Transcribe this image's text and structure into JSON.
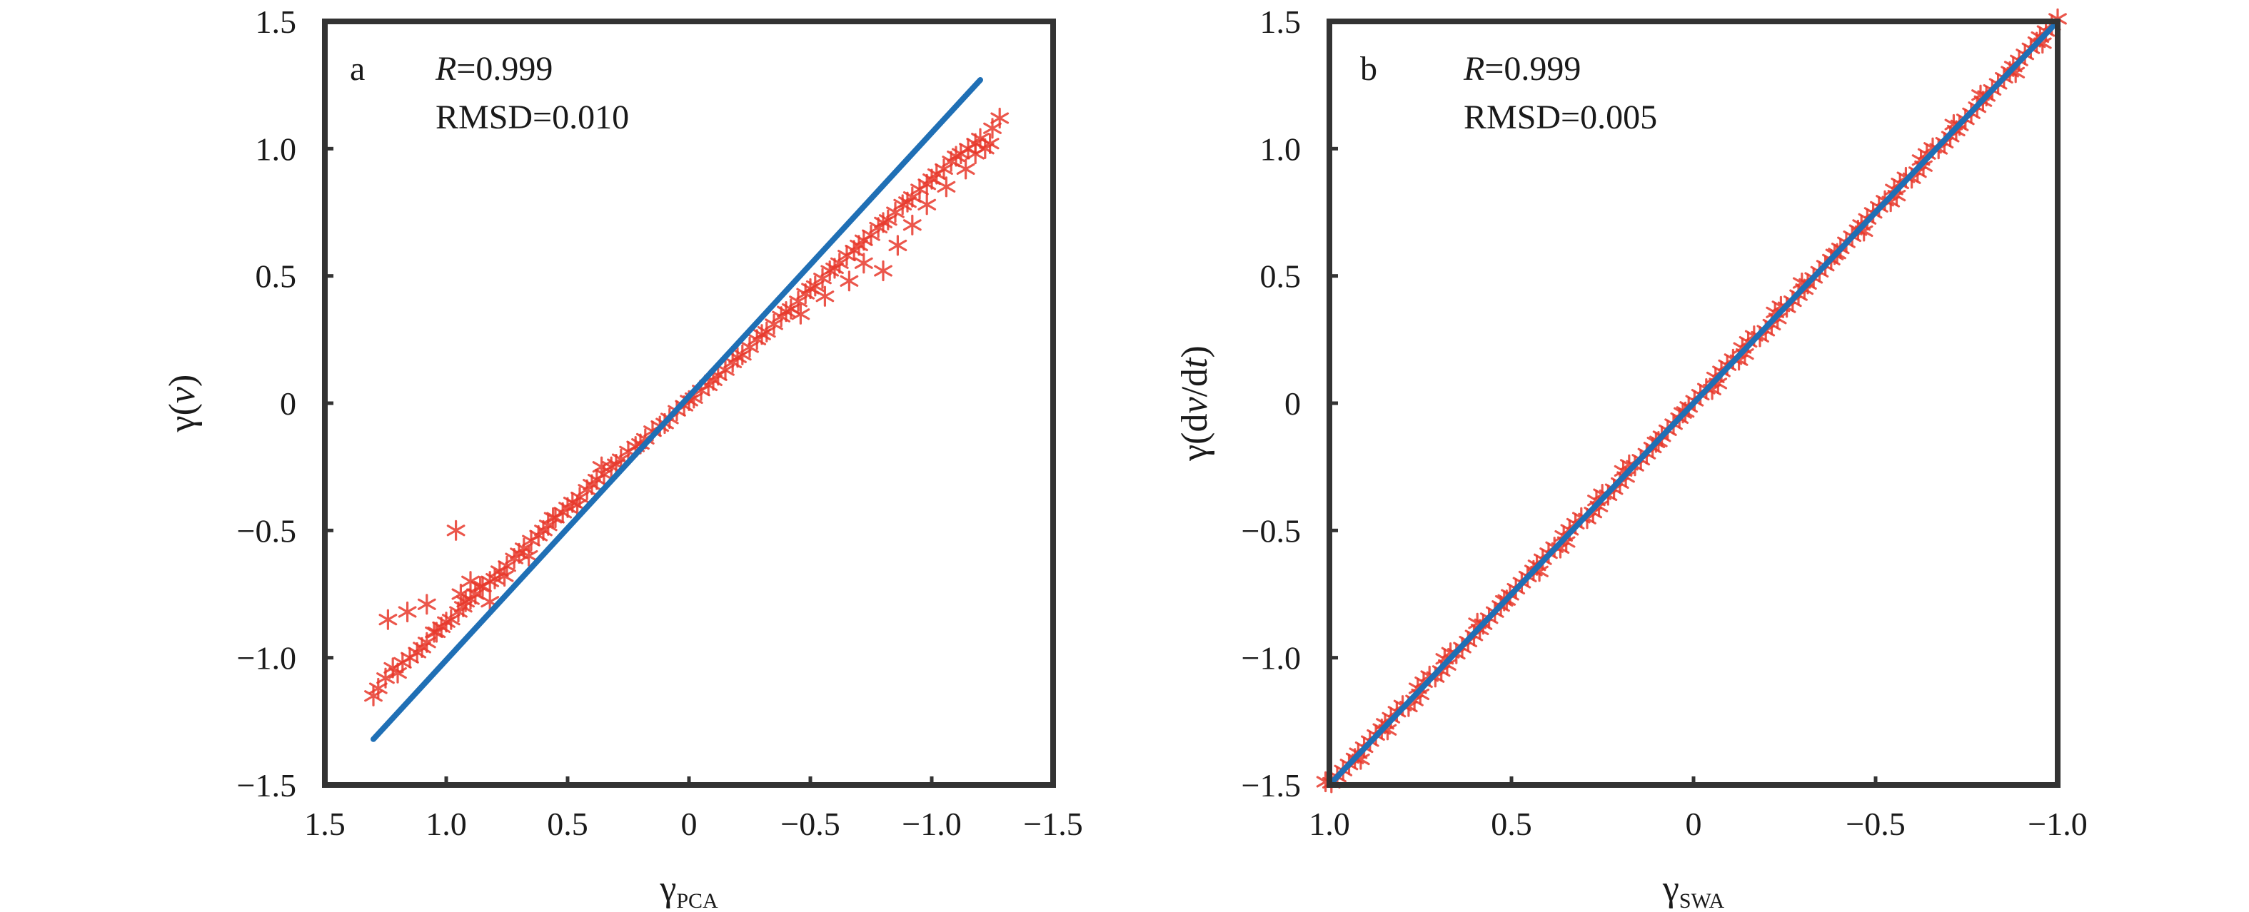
{
  "chart_data": [
    {
      "type": "scatter",
      "panel_letter": "a",
      "stats": {
        "r_prefix": "R",
        "r_text": "=0.999",
        "rmsd_text": "RMSD=0.010"
      },
      "xlabel": {
        "base": "γ",
        "sub": "PCA"
      },
      "ylabel": {
        "base": "γ(",
        "ital": "v",
        "tail": ")"
      },
      "xlim": [
        1.5,
        -1.5
      ],
      "ylim": [
        -1.5,
        1.5
      ],
      "x_reversed": true,
      "xticks": [
        1.5,
        1.0,
        0.5,
        0,
        -0.5,
        -1.0,
        -1.5
      ],
      "xtick_labels": [
        "1.5",
        "1.0",
        "0.5",
        "0",
        "−0.5",
        "−1.0",
        "−1.5"
      ],
      "yticks": [
        1.5,
        1.0,
        0.5,
        0,
        -0.5,
        -1.0,
        -1.5
      ],
      "ytick_labels": [
        "1.5",
        "1.0",
        "0.5",
        "0",
        "−0.5",
        "−1.0",
        "−1.5"
      ],
      "grid": false,
      "series": [
        {
          "marker": "asterisk",
          "color": "#e8392c",
          "x": [
            1.3,
            1.28,
            1.25,
            1.22,
            1.2,
            1.18,
            1.15,
            1.12,
            1.1,
            1.08,
            1.05,
            1.02,
            1.0,
            0.98,
            0.95,
            0.93,
            0.92,
            0.9,
            0.88,
            0.85,
            0.82,
            0.8,
            0.78,
            0.75,
            0.72,
            0.7,
            0.68,
            0.65,
            0.62,
            0.6,
            0.58,
            0.55,
            0.52,
            0.5,
            0.48,
            0.45,
            0.42,
            0.4,
            0.38,
            0.35,
            0.32,
            0.3,
            0.28,
            0.25,
            0.22,
            0.2,
            0.18,
            0.15,
            0.12,
            0.1,
            0.08,
            0.05,
            0.02,
            0.0,
            -0.02,
            -0.05,
            -0.08,
            -0.1,
            -0.12,
            -0.15,
            -0.18,
            -0.2,
            -0.22,
            -0.25,
            -0.28,
            -0.3,
            -0.32,
            -0.35,
            -0.38,
            -0.4,
            -0.42,
            -0.45,
            -0.48,
            -0.5,
            -0.52,
            -0.55,
            -0.58,
            -0.6,
            -0.62,
            -0.65,
            -0.68,
            -0.7,
            -0.72,
            -0.75,
            -0.78,
            -0.8,
            -0.82,
            -0.85,
            -0.88,
            -0.9,
            -0.92,
            -0.95,
            -0.98,
            -1.0,
            -1.02,
            -1.05,
            -1.08,
            -1.1,
            -1.12,
            -1.15,
            -1.18,
            -1.2,
            -1.22,
            -1.25,
            -1.28,
            1.24,
            1.16,
            1.08,
            1.04,
            0.96,
            0.94,
            0.9,
            0.86,
            0.82,
            0.76,
            0.66,
            0.56,
            0.46,
            0.36,
            -0.46,
            -0.56,
            -0.66,
            -0.72,
            -0.8,
            -0.86,
            -0.92,
            -0.98,
            -1.06,
            -1.14,
            -1.18,
            -1.24
          ],
          "y": [
            -1.15,
            -1.12,
            -1.08,
            -1.04,
            -1.06,
            -1.02,
            -1.0,
            -0.98,
            -0.96,
            -0.94,
            -0.9,
            -0.88,
            -0.86,
            -0.85,
            -0.82,
            -0.8,
            -0.78,
            -0.77,
            -0.75,
            -0.72,
            -0.7,
            -0.69,
            -0.66,
            -0.64,
            -0.61,
            -0.59,
            -0.57,
            -0.54,
            -0.52,
            -0.5,
            -0.48,
            -0.45,
            -0.43,
            -0.41,
            -0.39,
            -0.37,
            -0.34,
            -0.32,
            -0.3,
            -0.28,
            -0.25,
            -0.24,
            -0.22,
            -0.19,
            -0.17,
            -0.16,
            -0.14,
            -0.11,
            -0.09,
            -0.08,
            -0.06,
            -0.03,
            -0.01,
            0.01,
            0.02,
            0.05,
            0.07,
            0.09,
            0.11,
            0.13,
            0.16,
            0.18,
            0.19,
            0.22,
            0.25,
            0.27,
            0.28,
            0.31,
            0.34,
            0.36,
            0.37,
            0.4,
            0.43,
            0.45,
            0.46,
            0.49,
            0.52,
            0.53,
            0.55,
            0.58,
            0.6,
            0.62,
            0.64,
            0.66,
            0.69,
            0.71,
            0.72,
            0.75,
            0.78,
            0.79,
            0.81,
            0.84,
            0.86,
            0.88,
            0.9,
            0.92,
            0.95,
            0.97,
            0.98,
            1.0,
            1.02,
            1.04,
            1.0,
            1.08,
            1.12,
            -0.85,
            -0.82,
            -0.79,
            -0.9,
            -0.5,
            -0.75,
            -0.7,
            -0.72,
            -0.78,
            -0.68,
            -0.6,
            -0.45,
            -0.4,
            -0.25,
            0.35,
            0.42,
            0.48,
            0.55,
            0.52,
            0.62,
            0.7,
            0.78,
            0.85,
            0.92,
            0.98,
            1.02
          ]
        },
        {
          "type": "line",
          "color": "#1f6fb5",
          "x": [
            1.3,
            -1.2
          ],
          "y": [
            -1.32,
            1.27
          ]
        }
      ]
    },
    {
      "type": "scatter",
      "panel_letter": "b",
      "stats": {
        "r_prefix": "R",
        "r_text": "=0.999",
        "rmsd_text": "RMSD=0.005"
      },
      "xlabel": {
        "base": "γ",
        "sub": "SWA"
      },
      "ylabel": {
        "base": "γ(d",
        "ital": "v",
        "mid": "/d",
        "ital2": "t",
        "tail": ")"
      },
      "xlim": [
        1.0,
        -1.0
      ],
      "ylim": [
        -1.5,
        1.5
      ],
      "x_reversed": true,
      "xticks": [
        1.0,
        0.5,
        0,
        -0.5,
        -1.0
      ],
      "xtick_labels": [
        "1.0",
        "0.5",
        "0",
        "−0.5",
        "−1.0"
      ],
      "yticks": [
        1.5,
        1.0,
        0.5,
        0,
        -0.5,
        -1.0,
        -1.5
      ],
      "ytick_labels": [
        "1.5",
        "1.0",
        "0.5",
        "0",
        "−0.5",
        "−1.0",
        "−1.5"
      ],
      "grid": false,
      "series": [
        {
          "marker": "asterisk",
          "color": "#e8392c",
          "x_range": [
            1.0,
            -1.0
          ],
          "y_range": [
            -1.5,
            1.5
          ],
          "point_count": 160
        },
        {
          "type": "line",
          "color": "#1f6fb5",
          "x": [
            1.0,
            -1.0
          ],
          "y": [
            -1.5,
            1.5
          ]
        }
      ]
    }
  ]
}
